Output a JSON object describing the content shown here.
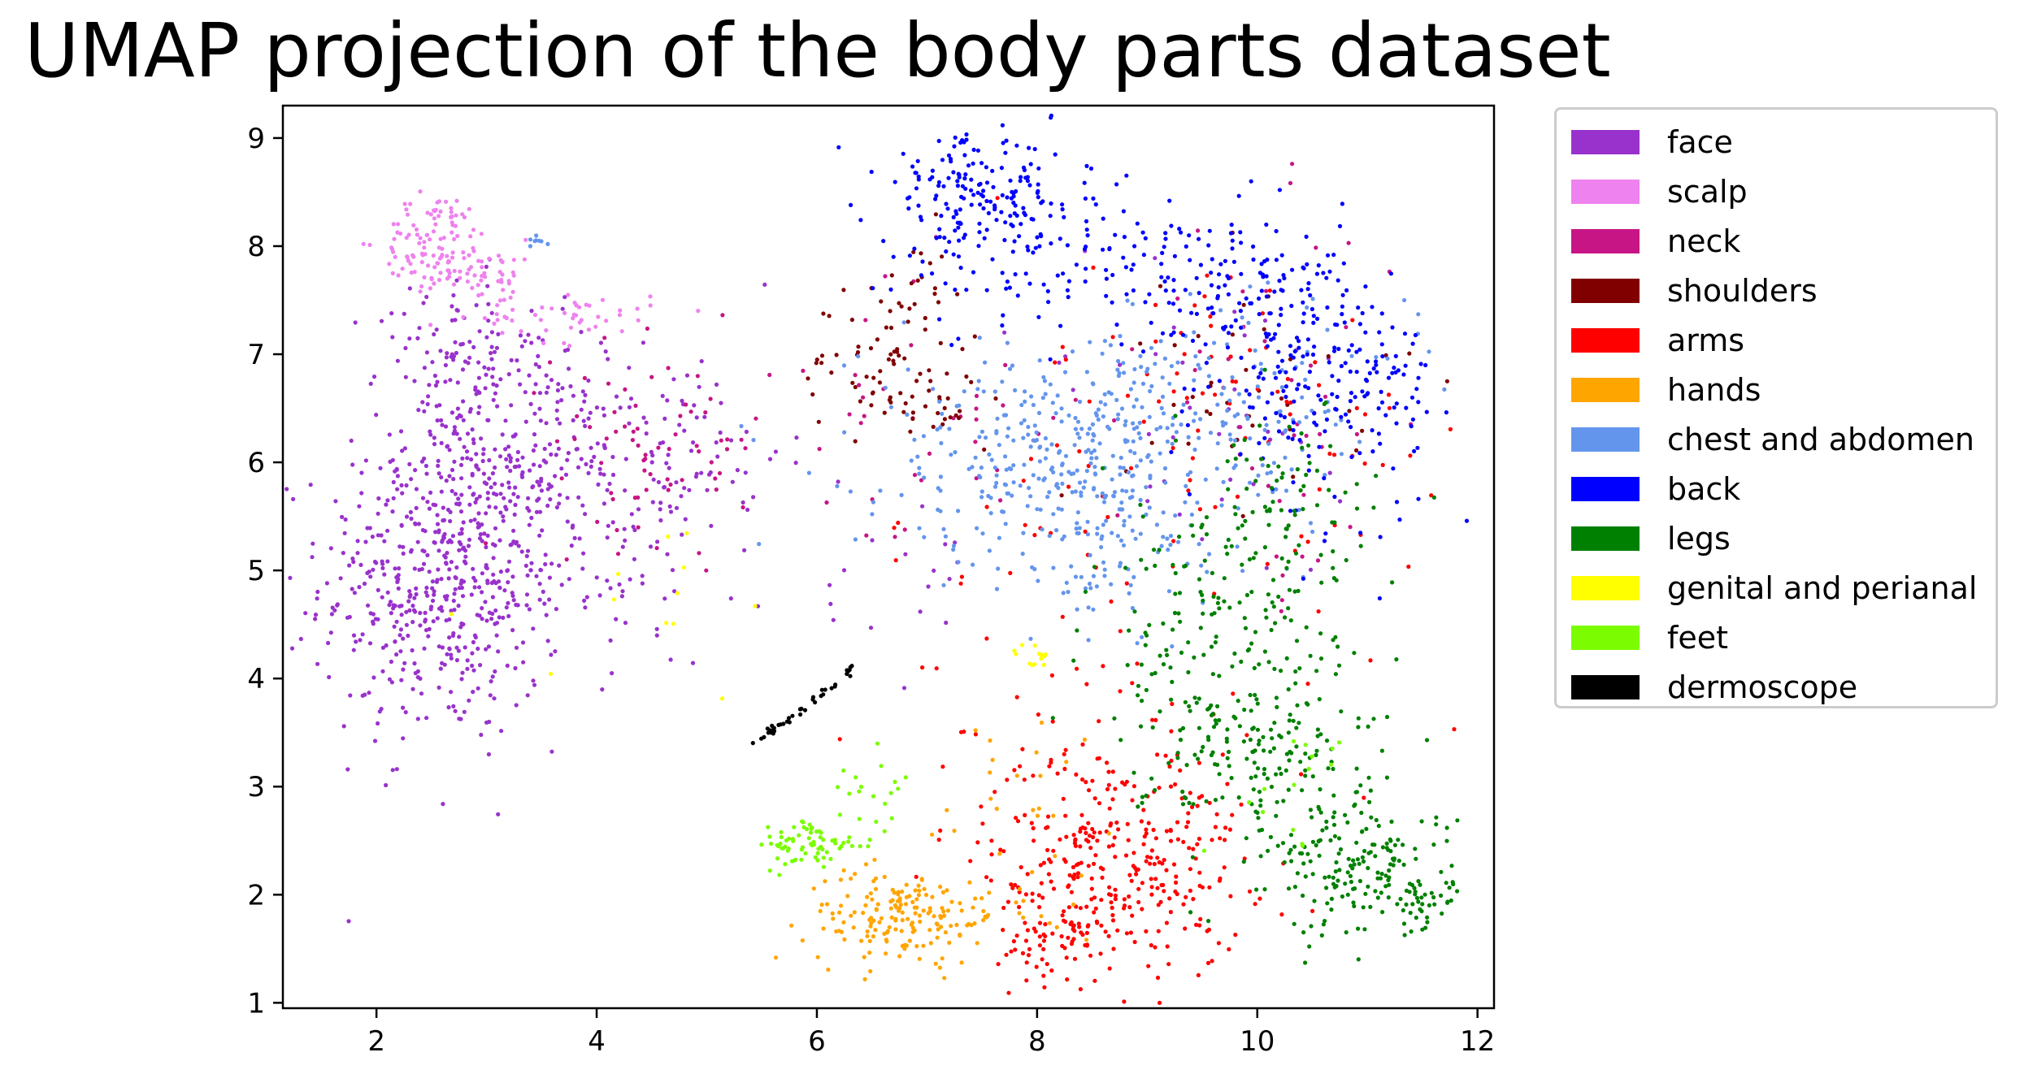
{
  "chart_data": {
    "type": "scatter",
    "title": "UMAP projection of the body parts dataset",
    "xlabel": "",
    "ylabel": "",
    "xlim": [
      1.15,
      12.15
    ],
    "ylim": [
      0.95,
      9.3
    ],
    "xticks": [
      2,
      4,
      6,
      8,
      10,
      12
    ],
    "yticks": [
      1,
      2,
      3,
      4,
      5,
      6,
      7,
      8,
      9
    ],
    "legend_position": "outside-right-top",
    "grid": false,
    "series": [
      {
        "name": "face",
        "color": "#9932CC",
        "clusters": [
          {
            "cx": 2.6,
            "cy": 4.9,
            "sx": 0.55,
            "sy": 0.75,
            "n": 520
          },
          {
            "cx": 3.3,
            "cy": 6.0,
            "sx": 0.55,
            "sy": 0.7,
            "n": 260
          },
          {
            "cx": 2.7,
            "cy": 6.9,
            "sx": 0.35,
            "sy": 0.4,
            "n": 90
          },
          {
            "cx": 4.7,
            "cy": 6.1,
            "sx": 0.5,
            "sy": 0.45,
            "n": 90
          },
          {
            "cx": 4.3,
            "cy": 4.8,
            "sx": 0.4,
            "sy": 0.35,
            "n": 30
          },
          {
            "cx": 6.6,
            "cy": 5.0,
            "sx": 0.5,
            "sy": 0.6,
            "n": 20
          },
          {
            "cx": 9.5,
            "cy": 6.3,
            "sx": 0.9,
            "sy": 0.8,
            "n": 40
          }
        ]
      },
      {
        "name": "scalp",
        "color": "#EE82EE",
        "clusters": [
          {
            "cx": 2.55,
            "cy": 8.05,
            "sx": 0.25,
            "sy": 0.22,
            "n": 110
          },
          {
            "cx": 3.0,
            "cy": 7.7,
            "sx": 0.25,
            "sy": 0.18,
            "n": 50
          },
          {
            "cx": 3.8,
            "cy": 7.35,
            "sx": 0.35,
            "sy": 0.12,
            "n": 40
          }
        ]
      },
      {
        "name": "neck",
        "color": "#C71585",
        "clusters": [
          {
            "cx": 4.6,
            "cy": 6.2,
            "sx": 0.5,
            "sy": 0.45,
            "n": 70
          },
          {
            "cx": 6.9,
            "cy": 6.4,
            "sx": 0.8,
            "sy": 0.7,
            "n": 40
          },
          {
            "cx": 10.2,
            "cy": 6.5,
            "sx": 0.6,
            "sy": 0.9,
            "n": 40
          }
        ]
      },
      {
        "name": "shoulders",
        "color": "#800000",
        "clusters": [
          {
            "cx": 6.5,
            "cy": 6.9,
            "sx": 0.35,
            "sy": 0.3,
            "n": 45
          },
          {
            "cx": 7.0,
            "cy": 6.55,
            "sx": 0.25,
            "sy": 0.15,
            "n": 30
          },
          {
            "cx": 6.9,
            "cy": 7.5,
            "sx": 0.3,
            "sy": 0.3,
            "n": 25
          },
          {
            "cx": 10.0,
            "cy": 6.8,
            "sx": 0.6,
            "sy": 0.6,
            "n": 40
          }
        ]
      },
      {
        "name": "arms",
        "color": "#FF0000",
        "clusters": [
          {
            "cx": 8.7,
            "cy": 2.3,
            "sx": 0.6,
            "sy": 0.55,
            "n": 330
          },
          {
            "cx": 8.2,
            "cy": 1.6,
            "sx": 0.25,
            "sy": 0.15,
            "n": 50
          },
          {
            "cx": 9.0,
            "cy": 4.6,
            "sx": 1.2,
            "sy": 1.4,
            "n": 90
          },
          {
            "cx": 9.8,
            "cy": 6.7,
            "sx": 1.0,
            "sy": 0.6,
            "n": 60
          }
        ]
      },
      {
        "name": "hands",
        "color": "#FFA500",
        "clusters": [
          {
            "cx": 6.7,
            "cy": 1.8,
            "sx": 0.4,
            "sy": 0.22,
            "n": 150
          },
          {
            "cx": 7.4,
            "cy": 1.8,
            "sx": 0.3,
            "sy": 0.12,
            "n": 30
          },
          {
            "cx": 7.9,
            "cy": 2.7,
            "sx": 0.5,
            "sy": 0.6,
            "n": 30
          }
        ]
      },
      {
        "name": "chest and abdomen",
        "color": "#6495ED",
        "clusters": [
          {
            "cx": 8.2,
            "cy": 6.1,
            "sx": 0.9,
            "sy": 0.5,
            "n": 330
          },
          {
            "cx": 8.7,
            "cy": 5.3,
            "sx": 0.7,
            "sy": 0.5,
            "n": 110
          },
          {
            "cx": 9.8,
            "cy": 6.6,
            "sx": 0.8,
            "sy": 0.4,
            "n": 110
          },
          {
            "cx": 3.45,
            "cy": 8.05,
            "sx": 0.05,
            "sy": 0.04,
            "n": 8
          }
        ]
      },
      {
        "name": "back",
        "color": "#0000FF",
        "clusters": [
          {
            "cx": 7.4,
            "cy": 8.5,
            "sx": 0.4,
            "sy": 0.25,
            "n": 130
          },
          {
            "cx": 7.9,
            "cy": 8.0,
            "sx": 0.6,
            "sy": 0.4,
            "n": 110
          },
          {
            "cx": 9.3,
            "cy": 7.7,
            "sx": 0.6,
            "sy": 0.3,
            "n": 90
          },
          {
            "cx": 10.3,
            "cy": 7.4,
            "sx": 0.4,
            "sy": 0.4,
            "n": 120
          },
          {
            "cx": 10.6,
            "cy": 6.5,
            "sx": 0.5,
            "sy": 0.5,
            "n": 110
          },
          {
            "cx": 11.1,
            "cy": 6.7,
            "sx": 0.3,
            "sy": 0.2,
            "n": 30
          }
        ]
      },
      {
        "name": "legs",
        "color": "#008000",
        "clusters": [
          {
            "cx": 10.1,
            "cy": 3.3,
            "sx": 0.55,
            "sy": 0.55,
            "n": 190
          },
          {
            "cx": 11.0,
            "cy": 2.2,
            "sx": 0.4,
            "sy": 0.3,
            "n": 170
          },
          {
            "cx": 9.6,
            "cy": 4.5,
            "sx": 0.55,
            "sy": 0.7,
            "n": 150
          },
          {
            "cx": 10.3,
            "cy": 5.5,
            "sx": 0.4,
            "sy": 0.5,
            "n": 70
          },
          {
            "cx": 11.5,
            "cy": 1.95,
            "sx": 0.1,
            "sy": 0.1,
            "n": 20
          }
        ]
      },
      {
        "name": "genital and perianal",
        "color": "#FFFF00",
        "clusters": [
          {
            "cx": 7.95,
            "cy": 4.2,
            "sx": 0.1,
            "sy": 0.06,
            "n": 14
          },
          {
            "cx": 4.5,
            "cy": 5.0,
            "sx": 0.7,
            "sy": 0.6,
            "n": 12
          }
        ]
      },
      {
        "name": "feet",
        "color": "#7CFC00",
        "clusters": [
          {
            "cx": 5.95,
            "cy": 2.45,
            "sx": 0.22,
            "sy": 0.12,
            "n": 70
          },
          {
            "cx": 6.5,
            "cy": 2.85,
            "sx": 0.2,
            "sy": 0.3,
            "n": 20
          },
          {
            "cx": 10.3,
            "cy": 3.0,
            "sx": 0.3,
            "sy": 0.3,
            "n": 15
          }
        ]
      },
      {
        "name": "dermoscope",
        "color": "#000000",
        "line": {
          "x0": 5.45,
          "y0": 3.4,
          "x1": 6.35,
          "y1": 4.1,
          "n": 40
        }
      }
    ]
  }
}
